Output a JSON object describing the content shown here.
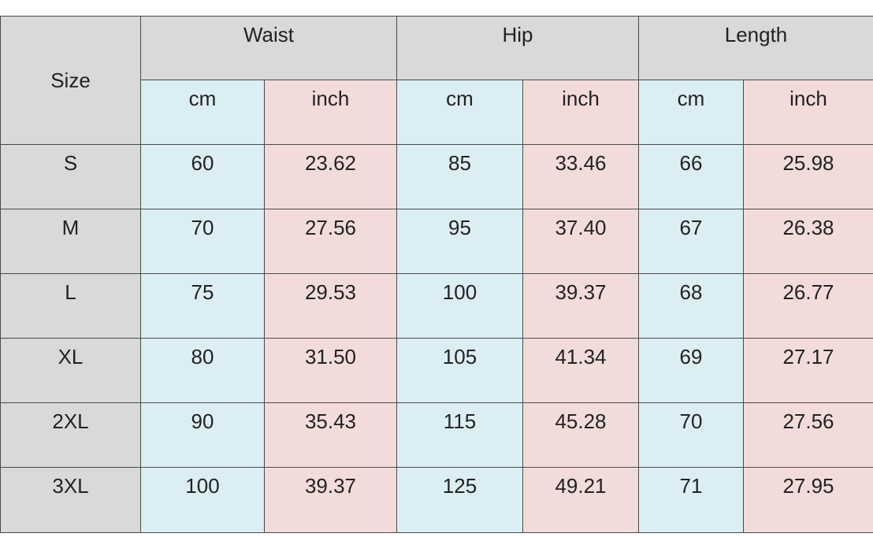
{
  "table": {
    "size_header": "Size",
    "groups": [
      "Waist",
      "Hip",
      "Length"
    ],
    "units": [
      "cm",
      "inch",
      "cm",
      "inch",
      "cm",
      "inch"
    ],
    "rows": [
      [
        "S",
        "60",
        "23.62",
        "85",
        "33.46",
        "66",
        "25.98"
      ],
      [
        "M",
        "70",
        "27.56",
        "95",
        "37.40",
        "67",
        "26.38"
      ],
      [
        "L",
        "75",
        "29.53",
        "100",
        "39.37",
        "68",
        "26.77"
      ],
      [
        "XL",
        "80",
        "31.50",
        "105",
        "41.34",
        "69",
        "27.17"
      ],
      [
        "2XL",
        "90",
        "35.43",
        "115",
        "45.28",
        "70",
        "27.56"
      ],
      [
        "3XL",
        "100",
        "39.37",
        "125",
        "49.21",
        "71",
        "27.95"
      ]
    ]
  }
}
